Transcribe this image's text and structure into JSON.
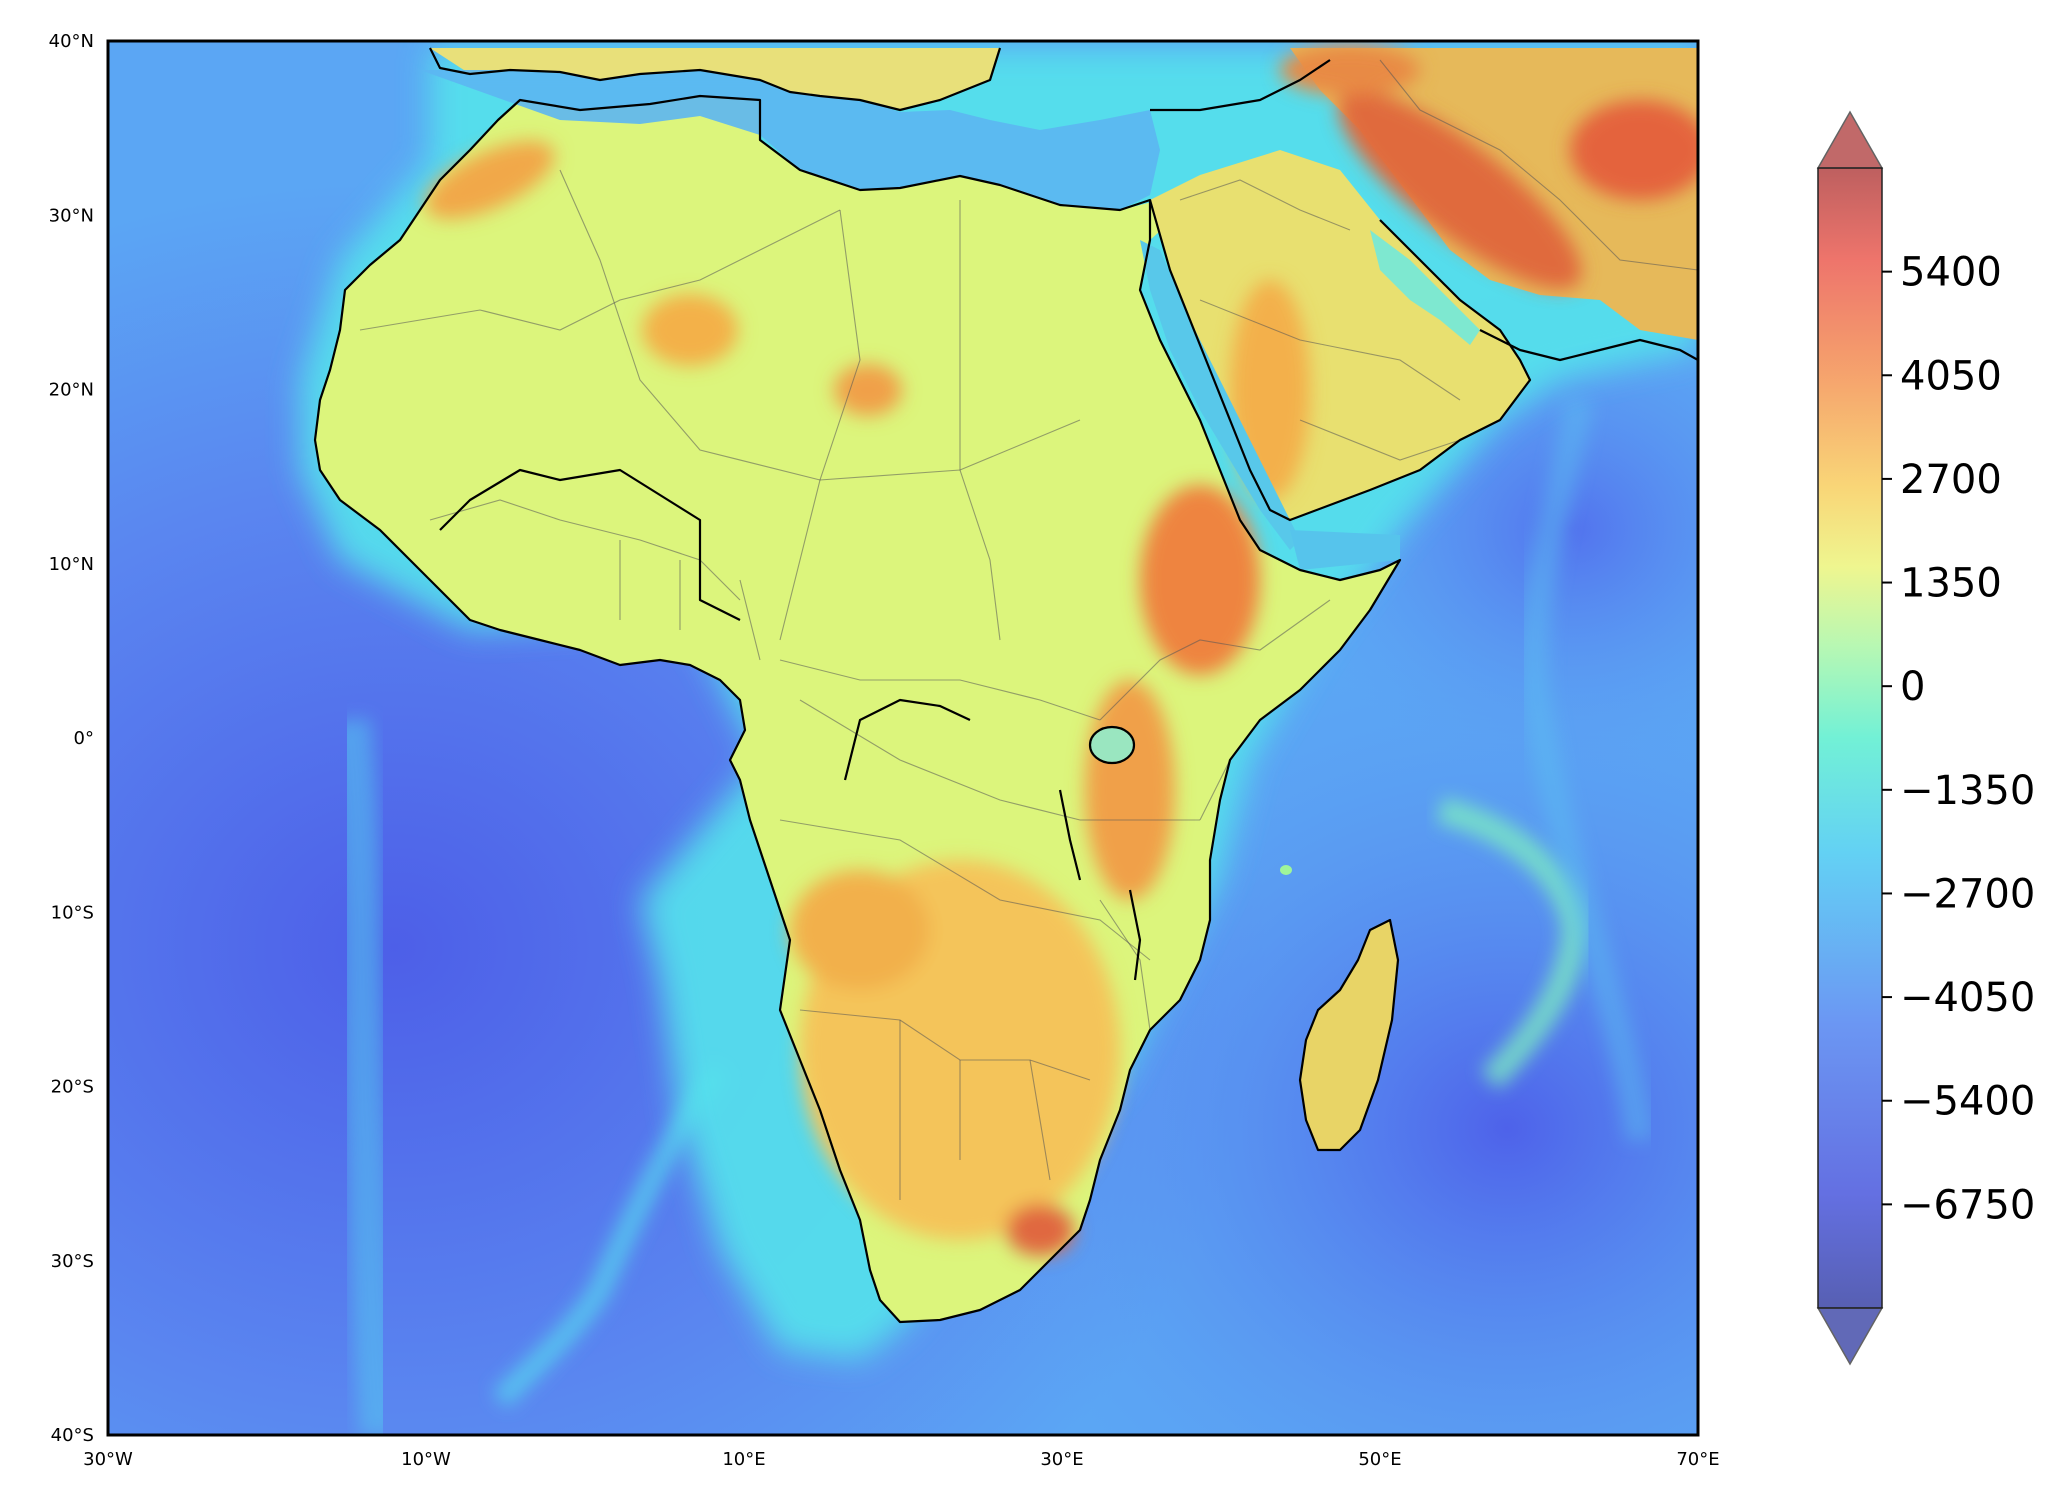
{
  "map": {
    "projection": "equirectangular",
    "extent": {
      "lon": [
        -30,
        70
      ],
      "lat": [
        -40,
        40
      ]
    },
    "field": "topography / bathymetry",
    "grid": false,
    "lon_ticks": [
      {
        "value": -30,
        "label": "30°W"
      },
      {
        "value": -10,
        "label": "10°W"
      },
      {
        "value": 10,
        "label": "10°E"
      },
      {
        "value": 30,
        "label": "30°E"
      },
      {
        "value": 50,
        "label": "50°E"
      },
      {
        "value": 70,
        "label": "70°E"
      }
    ],
    "lat_ticks": [
      {
        "value": 40,
        "label": "40°N"
      },
      {
        "value": 30,
        "label": "30°N"
      },
      {
        "value": 20,
        "label": "20°N"
      },
      {
        "value": 10,
        "label": "10°N"
      },
      {
        "value": 0,
        "label": "0°"
      },
      {
        "value": -10,
        "label": "10°S"
      },
      {
        "value": -20,
        "label": "20°S"
      },
      {
        "value": -30,
        "label": "30°S"
      },
      {
        "value": -40,
        "label": "40°S"
      }
    ],
    "colors": {
      "deep_ocean": "#4f64ea",
      "ocean": "#5b9cf4",
      "shelf": "#55e8ea",
      "lowland": "#dcf57c",
      "highland": "#f4b54a",
      "mountain": "#e8643c",
      "coastline": "#000000",
      "borders": "#555555"
    }
  },
  "colorbar": {
    "type": "continuous",
    "extend": "both",
    "orientation": "vertical",
    "placement": "right",
    "colormap": "jet",
    "min": -8100,
    "max": 6750,
    "ticks": [
      {
        "value": 5400,
        "label": "5400"
      },
      {
        "value": 4050,
        "label": "4050"
      },
      {
        "value": 2700,
        "label": "2700"
      },
      {
        "value": 1350,
        "label": "1350"
      },
      {
        "value": 0,
        "label": "0"
      },
      {
        "value": -1350,
        "label": "−1350"
      },
      {
        "value": -2700,
        "label": "−2700"
      },
      {
        "value": -4050,
        "label": "−4050"
      },
      {
        "value": -5400,
        "label": "−5400"
      },
      {
        "value": -6750,
        "label": "−6750"
      }
    ]
  }
}
